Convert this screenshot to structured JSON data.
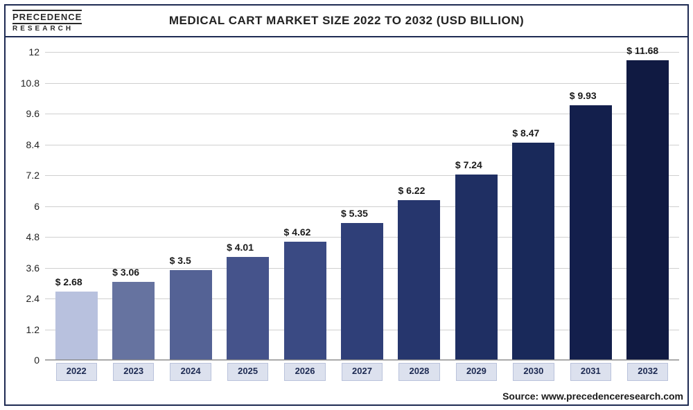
{
  "logo": {
    "top": "PRECEDENCE",
    "bottom": "RESEARCH"
  },
  "chart": {
    "type": "bar",
    "title": "MEDICAL CART MARKET SIZE 2022 TO 2032 (USD BILLION)",
    "categories": [
      "2022",
      "2023",
      "2024",
      "2025",
      "2026",
      "2027",
      "2028",
      "2029",
      "2030",
      "2031",
      "2032"
    ],
    "values": [
      2.68,
      3.06,
      3.5,
      4.01,
      4.62,
      5.35,
      6.22,
      7.24,
      8.47,
      9.93,
      11.68
    ],
    "value_labels": [
      "$ 2.68",
      "$ 3.06",
      "$ 3.5",
      "$ 4.01",
      "$ 4.62",
      "$ 5.35",
      "$ 6.22",
      "$ 7.24",
      "$ 8.47",
      "$ 9.93",
      "$ 11.68"
    ],
    "bar_colors": [
      "#b8c1de",
      "#6673a0",
      "#546295",
      "#45538b",
      "#3a4a83",
      "#2f3f78",
      "#26366d",
      "#1f2f63",
      "#19295a",
      "#131f4c",
      "#101a42"
    ],
    "y_ticks": [
      0,
      1.2,
      2.4,
      3.6,
      4.8,
      6,
      7.2,
      8.4,
      9.6,
      10.8,
      12
    ],
    "y_tick_labels": [
      "0",
      "1.2",
      "2.4",
      "3.6",
      "4.8",
      "6",
      "7.2",
      "8.4",
      "9.6",
      "10.8",
      "12"
    ],
    "y_max": 12,
    "grid_color": "#cfcfcf",
    "background_color": "#ffffff",
    "title_fontsize": 17,
    "label_fontsize": 14,
    "bar_width": 0.74,
    "xlabel_bg": "#dce1ee",
    "xlabel_border": "#b9c2db",
    "border_color": "#1d2a52"
  },
  "source": "Source: www.precedenceresearch.com"
}
